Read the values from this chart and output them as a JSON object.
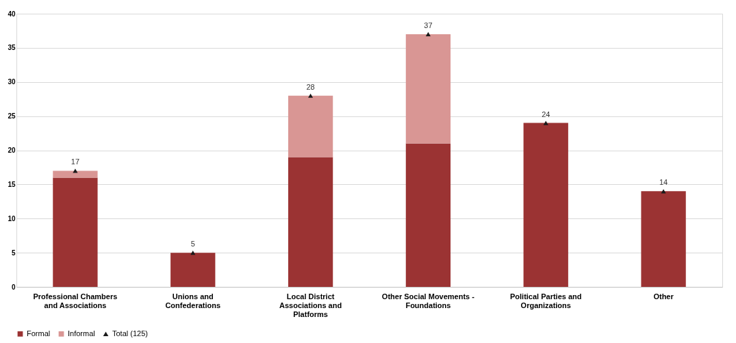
{
  "chart_data": {
    "type": "bar",
    "stacked": true,
    "categories": [
      "Professional Chambers and Associations",
      "Unions and Confederations",
      "Local District Associations and Platforms",
      "Other Social Movements - Foundations",
      "Political Parties and Organizations",
      "Other"
    ],
    "series": [
      {
        "name": "Formal",
        "color": "#9b3333",
        "values": [
          16,
          5,
          19,
          21,
          24,
          14
        ]
      },
      {
        "name": "Informal",
        "color": "#d99694",
        "values": [
          1,
          0,
          9,
          16,
          0,
          0
        ]
      },
      {
        "name": "Total (125)",
        "type": "scatter",
        "marker": "triangle",
        "color": "#1a1a1a",
        "values": [
          17,
          5,
          28,
          37,
          24,
          14
        ]
      }
    ],
    "totals": [
      "17",
      "5",
      "28",
      "37",
      "24",
      "14"
    ],
    "ylim": [
      0,
      40
    ],
    "yticks": [
      0,
      5,
      10,
      15,
      20,
      25,
      30,
      35,
      40
    ],
    "grid": "y",
    "legend": "bottom"
  }
}
